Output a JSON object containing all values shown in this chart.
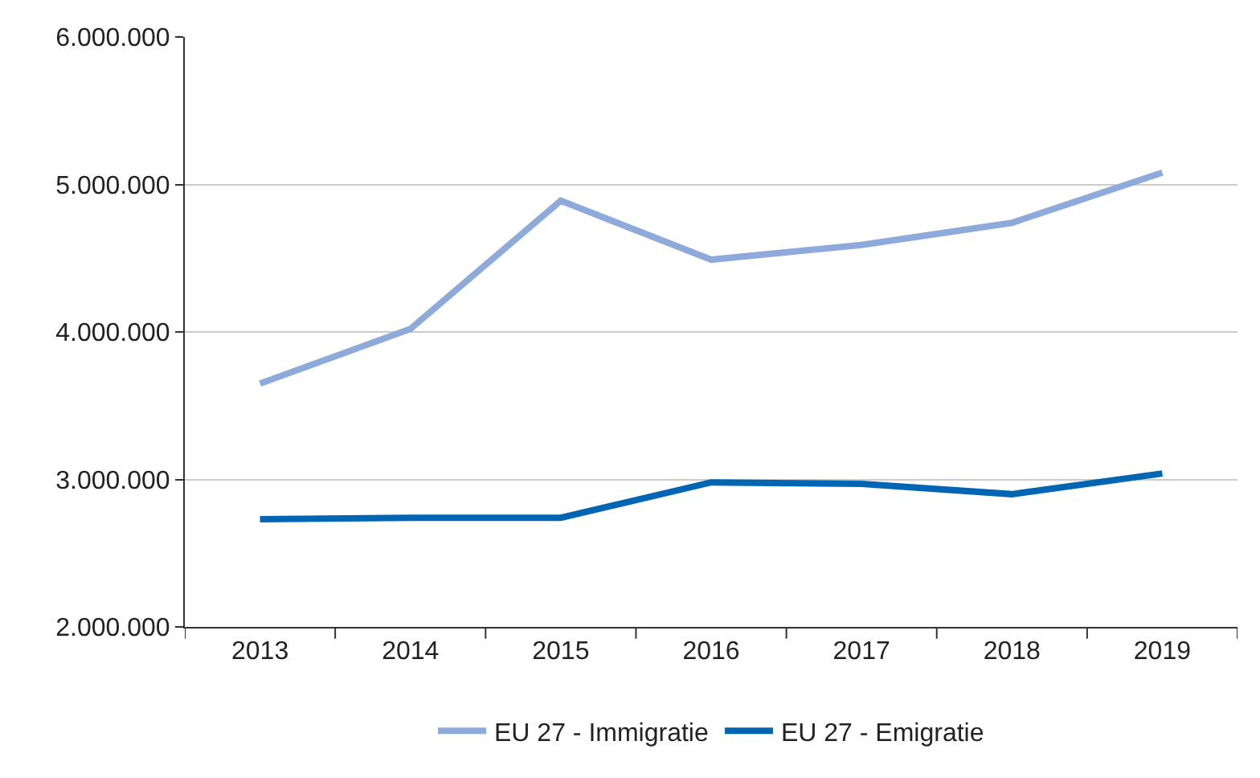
{
  "chart_data": {
    "type": "line",
    "categories": [
      "2013",
      "2014",
      "2015",
      "2016",
      "2017",
      "2018",
      "2019"
    ],
    "series": [
      {
        "name": "EU 27 - Immigratie",
        "color": "#8eaadb",
        "values": [
          3650000,
          4020000,
          4890000,
          4490000,
          4590000,
          4740000,
          5080000
        ]
      },
      {
        "name": "EU 27 - Emigratie",
        "color": "#0066b3",
        "values": [
          2730000,
          2740000,
          2740000,
          2980000,
          2970000,
          2900000,
          3040000
        ]
      }
    ],
    "ylim": [
      2000000,
      6000000
    ],
    "yticks": [
      {
        "value": 2000000,
        "label": "2.000.000"
      },
      {
        "value": 3000000,
        "label": "3.000.000"
      },
      {
        "value": 4000000,
        "label": "4.000.000"
      },
      {
        "value": 5000000,
        "label": "5.000.000"
      },
      {
        "value": 6000000,
        "label": "6.000.000"
      }
    ],
    "grid": "y",
    "legend": "bottom",
    "marker": "none",
    "line_style": "solid"
  }
}
